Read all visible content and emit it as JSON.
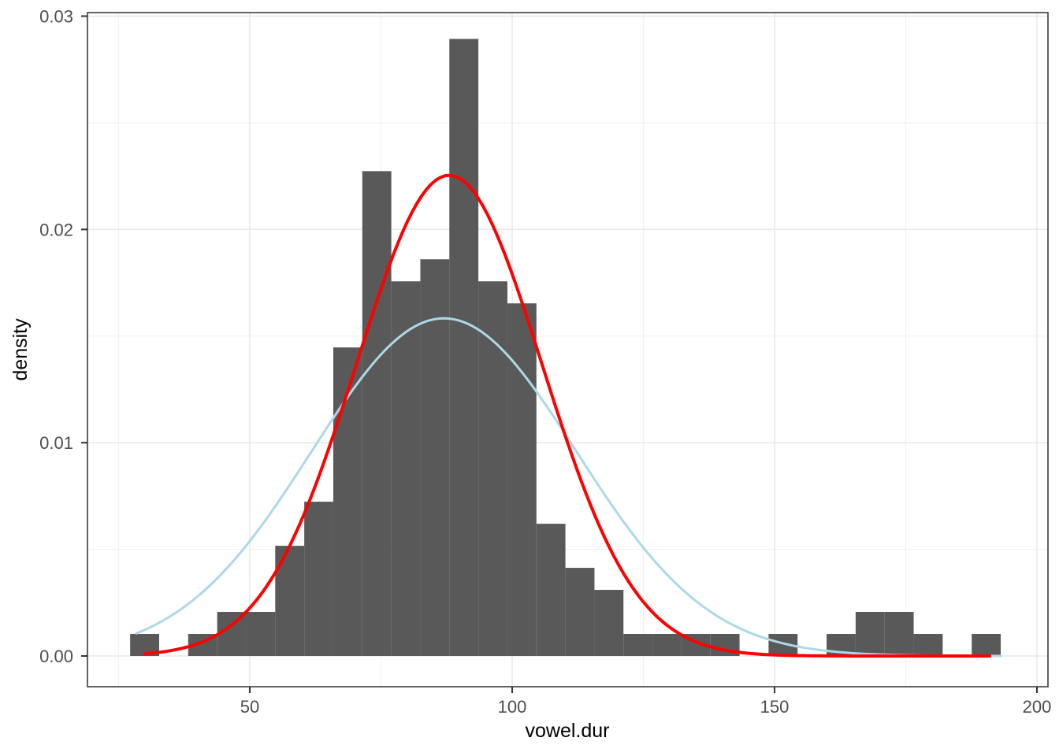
{
  "chart_data": {
    "type": "bar",
    "subtype": "histogram_with_normal_density_curves",
    "title": "",
    "xlabel": "vowel.dur",
    "ylabel": "density",
    "xlim": [
      19,
      202
    ],
    "ylim": [
      -0.0014,
      0.0301
    ],
    "grid": "major_and_minor",
    "legend": false,
    "x_axis": {
      "major_ticks": [
        50,
        100,
        150,
        200
      ],
      "tick_labels": [
        "50",
        "100",
        "150",
        "200"
      ],
      "minor_gridlines": [
        25,
        75,
        125,
        175
      ]
    },
    "y_axis": {
      "major_ticks": [
        0,
        0.01,
        0.02,
        0.03
      ],
      "tick_labels": [
        "0.00",
        "0.01",
        "0.02",
        "0.03"
      ],
      "minor_gridlines": [
        0.005,
        0.015,
        0.025
      ]
    },
    "histogram": {
      "n_observations": 175,
      "bin_start": 27.2,
      "bin_width": 5.53,
      "counts": [
        1,
        0,
        1,
        2,
        2,
        5,
        7,
        14,
        22,
        17,
        18,
        28,
        17,
        16,
        6,
        4,
        3,
        1,
        1,
        1,
        1,
        0,
        1,
        0,
        1,
        2,
        2,
        1,
        0,
        1
      ],
      "max_density": 0.0289
    },
    "curves": [
      {
        "name": "lightblue-normal-curve",
        "distribution": "normal",
        "mean": 87,
        "sd": 25.2,
        "peak_density": 0.0158,
        "x_range": [
          28.4,
          193.1
        ],
        "color": "#ADD8E6",
        "stroke_width": 3
      },
      {
        "name": "red-normal-curve",
        "distribution": "normal",
        "mean": 88,
        "sd": 17.7,
        "peak_density": 0.0225,
        "x_range": [
          30,
          191
        ],
        "color": "#FF0000",
        "stroke_width": 4
      }
    ],
    "colors": {
      "bar_fill": "#595959",
      "panel_background": "#FFFFFF",
      "panel_border": "#3B3B3B",
      "grid_major": "#E7E7E7",
      "grid_minor": "#F2F2F2",
      "tick_mark": "#333333",
      "tick_label": "#4D4D4D",
      "axis_title": "#000000"
    }
  }
}
